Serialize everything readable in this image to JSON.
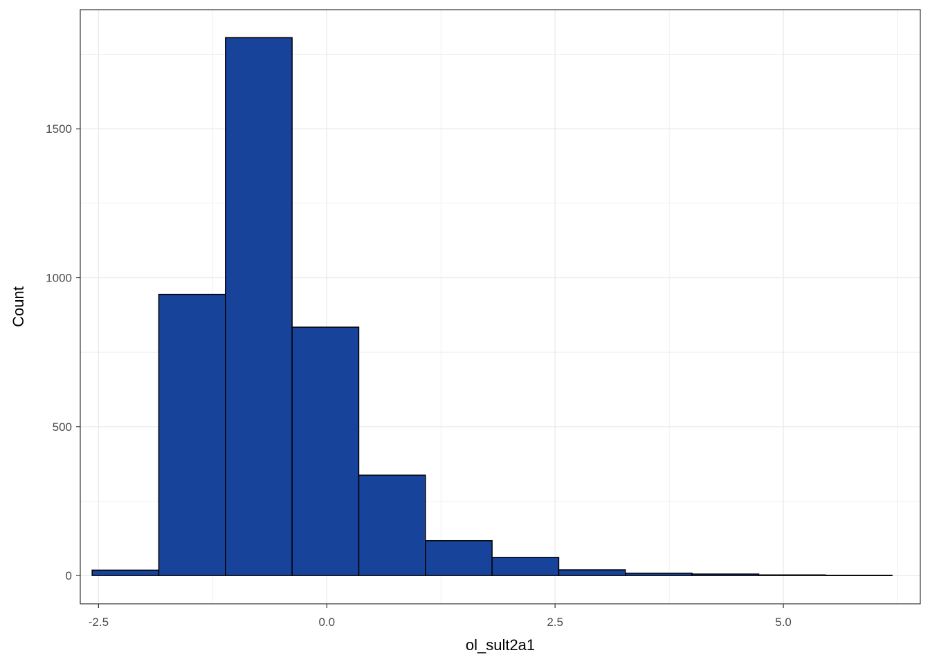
{
  "chart_data": {
    "type": "histogram",
    "xlabel": "ol_sult2a1",
    "ylabel": "Count",
    "xlim": [
      -2.7,
      6.5
    ],
    "ylim": [
      -95,
      1900
    ],
    "x_ticks": [
      -2.5,
      0.0,
      2.5,
      5.0
    ],
    "x_tick_labels": [
      "-2.5",
      "0.0",
      "2.5",
      "5.0"
    ],
    "y_ticks": [
      0,
      500,
      1000,
      1500
    ],
    "y_tick_labels": [
      "0",
      "500",
      "1000",
      "1500"
    ],
    "bin_edges": [
      -2.57,
      -1.84,
      -1.11,
      -0.38,
      0.35,
      1.08,
      1.81,
      2.54,
      3.27,
      4.0,
      4.73,
      5.46,
      6.19
    ],
    "counts": [
      18,
      944,
      1806,
      834,
      337,
      117,
      61,
      19,
      8,
      5,
      2,
      1
    ],
    "grid": true,
    "colors": {
      "bar_fill": "#18439A",
      "bar_stroke": "#000000",
      "grid": "#EBEBEB",
      "panel_border": "#333333"
    }
  }
}
